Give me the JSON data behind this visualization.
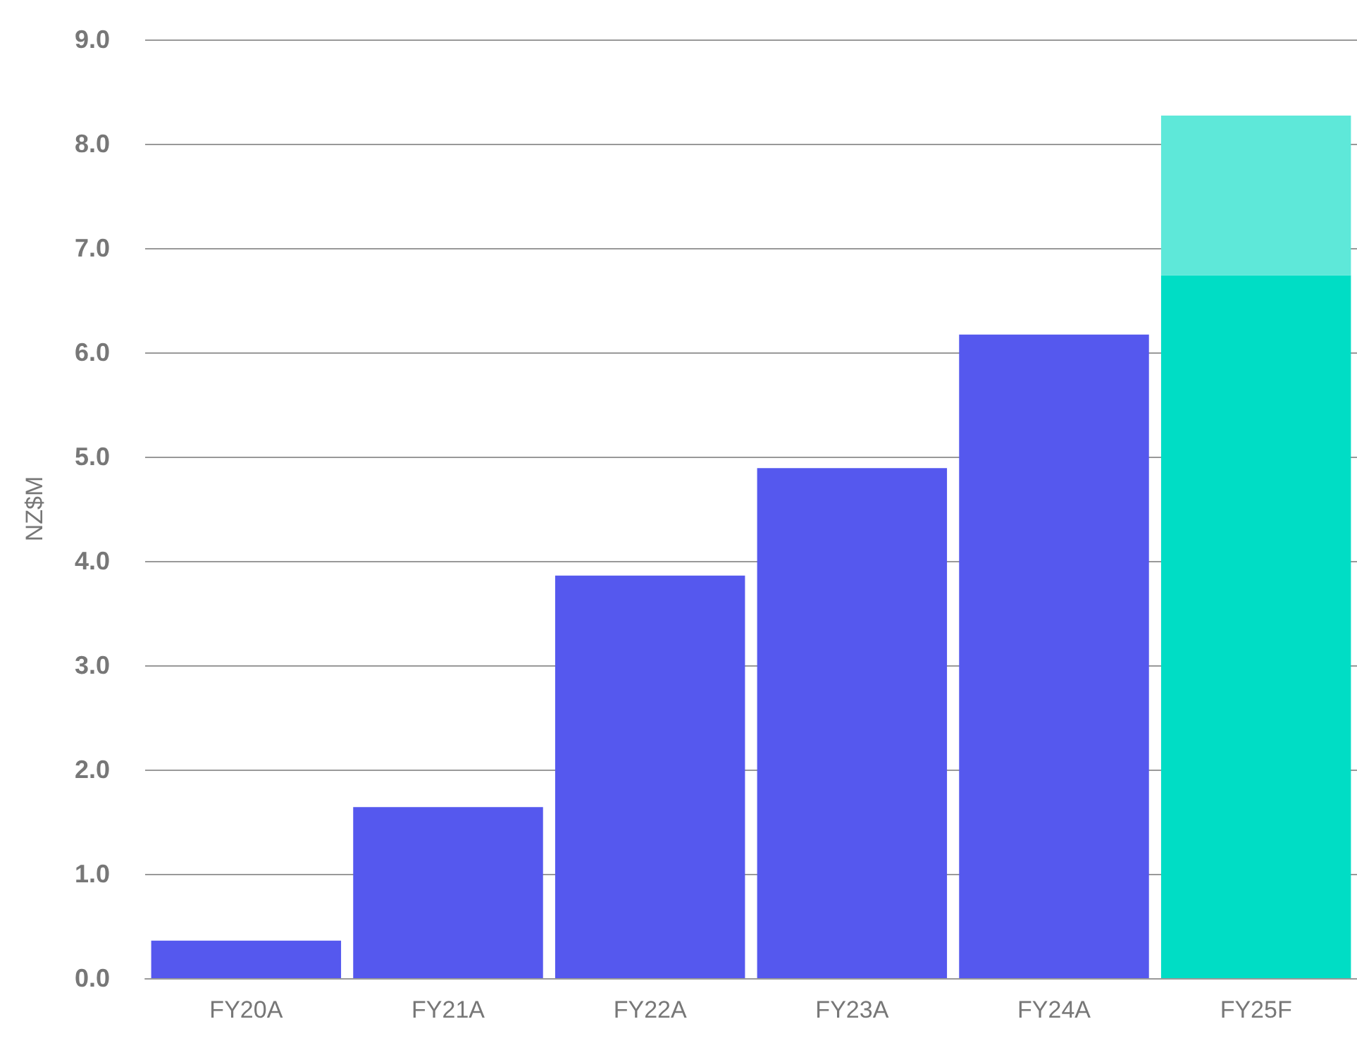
{
  "chart_data": {
    "type": "bar",
    "ylabel": "NZ$M",
    "stacked": true,
    "categories": [
      "FY20A",
      "FY21A",
      "FY22A",
      "FY23A",
      "FY24A",
      "FY25F"
    ],
    "series": [
      {
        "colors": [
          "#5558ee",
          "#5558ee",
          "#5558ee",
          "#5558ee",
          "#5558ee",
          "#00ddc5"
        ],
        "values": [
          0.36,
          1.64,
          3.86,
          4.89,
          6.17,
          6.74
        ]
      },
      {
        "color": "#5ee8d9",
        "values": [
          null,
          null,
          null,
          null,
          null,
          1.53
        ]
      }
    ],
    "ylim": [
      0,
      9
    ],
    "yticks": [
      {
        "value": 0,
        "label": "0.0"
      },
      {
        "value": 1,
        "label": "1.0"
      },
      {
        "value": 2,
        "label": "2.0"
      },
      {
        "value": 3,
        "label": "3.0"
      },
      {
        "value": 4,
        "label": "4.0"
      },
      {
        "value": 5,
        "label": "5.0"
      },
      {
        "value": 6,
        "label": "6.0"
      },
      {
        "value": 7,
        "label": "7.0"
      },
      {
        "value": 8,
        "label": "8.0"
      },
      {
        "value": 9,
        "label": "9.0"
      }
    ],
    "grid": "y"
  }
}
